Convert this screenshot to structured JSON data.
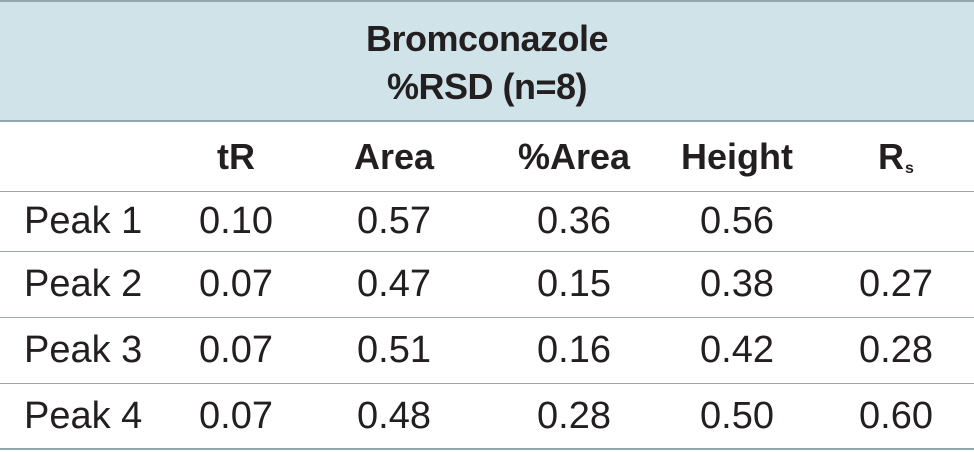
{
  "table": {
    "title_line1": "Bromconazole",
    "title_line2": "%RSD (n=8)",
    "columns": [
      {
        "main": "tR",
        "sub": ""
      },
      {
        "main": "Area",
        "sub": ""
      },
      {
        "main": "%Area",
        "sub": ""
      },
      {
        "main": "Height",
        "sub": ""
      },
      {
        "main": "R",
        "sub": "s"
      }
    ],
    "rows": [
      {
        "label": "Peak 1",
        "values": [
          "0.10",
          "0.57",
          "0.36",
          "0.56",
          ""
        ]
      },
      {
        "label": "Peak 2",
        "values": [
          "0.07",
          "0.47",
          "0.15",
          "0.38",
          "0.27"
        ]
      },
      {
        "label": "Peak 3",
        "values": [
          "0.07",
          "0.51",
          "0.16",
          "0.42",
          "0.28"
        ]
      },
      {
        "label": "Peak 4",
        "values": [
          "0.07",
          "0.48",
          "0.28",
          "0.50",
          "0.60"
        ]
      }
    ],
    "colors": {
      "title_band": "#cfe3e8",
      "rule": "#9aa6a9",
      "text": "#231f20"
    }
  }
}
